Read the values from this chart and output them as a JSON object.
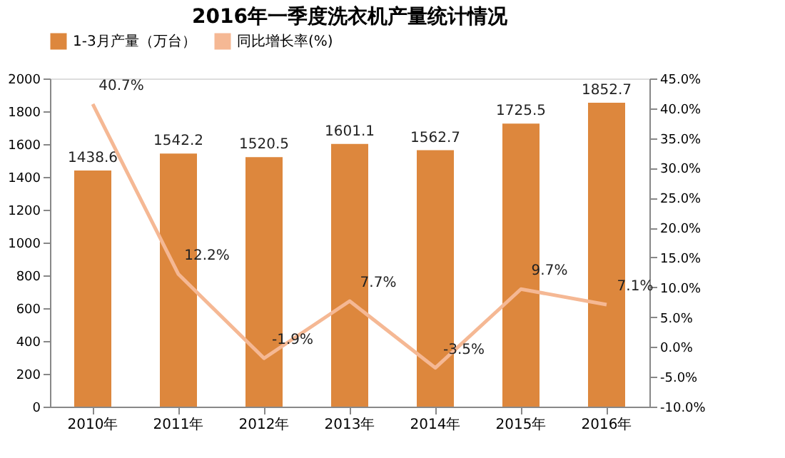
{
  "chart_data": {
    "type": "bar",
    "title": "2016年一季度洗衣机产量统计情况",
    "categories": [
      "2010年",
      "2011年",
      "2012年",
      "2013年",
      "2014年",
      "2015年",
      "2016年"
    ],
    "series": [
      {
        "name": "1-3月产量（万台）",
        "color": "#dd873d",
        "values": [
          1438.6,
          1542.2,
          1520.5,
          1601.1,
          1562.7,
          1725.5,
          1852.7
        ],
        "value_labels": [
          "1438.6",
          "1542.2",
          "1520.5",
          "1601.1",
          "1562.7",
          "1725.5",
          "1852.7"
        ]
      },
      {
        "name": "同比增长率(%)",
        "type": "line",
        "axis": "y2",
        "color": "#f5b894",
        "values": [
          40.7,
          12.2,
          -1.9,
          7.7,
          -3.5,
          9.7,
          7.1
        ],
        "value_labels": [
          "40.7%",
          "12.2%",
          "-1.9%",
          "7.7%",
          "-3.5%",
          "9.7%",
          "7.1%"
        ]
      }
    ],
    "ylim": [
      0,
      2000
    ],
    "yticks": [
      0,
      200,
      400,
      600,
      800,
      1000,
      1200,
      1400,
      1600,
      1800,
      2000
    ],
    "y2lim": [
      -10,
      45
    ],
    "y2ticks": [
      {
        "value": -10,
        "label": "-10.0%"
      },
      {
        "value": -5,
        "label": "-5.0%"
      },
      {
        "value": 0,
        "label": "0.0%"
      },
      {
        "value": 5,
        "label": "5.0%"
      },
      {
        "value": 10,
        "label": "10.0%"
      },
      {
        "value": 15,
        "label": "15.0%"
      },
      {
        "value": 20,
        "label": "20.0%"
      },
      {
        "value": 25,
        "label": "25.0%"
      },
      {
        "value": 30,
        "label": "30.0%"
      },
      {
        "value": 35,
        "label": "35.0%"
      },
      {
        "value": 40,
        "label": "40.0%"
      },
      {
        "value": 45,
        "label": "45.0%"
      }
    ],
    "legend": "top",
    "grid": false,
    "marker": "none",
    "line_style": "solid"
  }
}
